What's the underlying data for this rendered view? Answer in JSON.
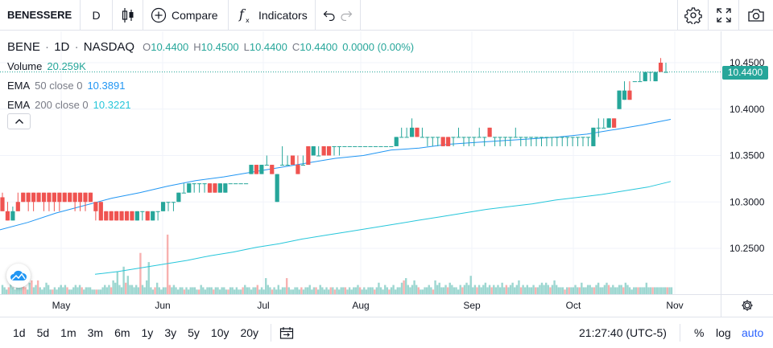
{
  "toolbar": {
    "symbol": "BENESSERE",
    "interval": "D",
    "compare_label": "Compare",
    "indicators_label": "Indicators"
  },
  "legend": {
    "ticker": "BENE",
    "interval": "1D",
    "exchange": "NASDAQ",
    "sep": "·",
    "o_label": "O",
    "open": "10.4400",
    "h_label": "H",
    "high": "10.4500",
    "l_label": "L",
    "low": "10.4400",
    "c_label": "C",
    "close": "10.4400",
    "change": "0.0000 (0.00%)",
    "volume_label": "Volume",
    "volume": "20.259K",
    "ema50_label": "EMA",
    "ema50_params": "50 close 0",
    "ema50_value": "10.3891",
    "ema200_label": "EMA",
    "ema200_params": "200 close 0",
    "ema200_value": "10.3221"
  },
  "price_axis": {
    "ticks": [
      "10.4500",
      "10.4000",
      "10.3500",
      "10.3000",
      "10.2500"
    ],
    "last_price": "10.4400"
  },
  "time_axis": {
    "months": [
      "May",
      "Jun",
      "Jul",
      "Aug",
      "Sep",
      "Oct",
      "Nov"
    ]
  },
  "bottom_bar": {
    "ranges": [
      "1d",
      "5d",
      "1m",
      "3m",
      "6m",
      "1y",
      "3y",
      "5y",
      "10y",
      "20y"
    ],
    "clock": "21:27:40 (UTC-5)",
    "percent": "%",
    "log": "log",
    "auto": "auto"
  },
  "colors": {
    "up": "#26a69a",
    "down": "#ef5350",
    "ema50": "#2196f3",
    "ema200": "#26c6da",
    "grid": "#f0f3fa",
    "accent": "#2962ff"
  },
  "chart_data": {
    "type": "candlestick",
    "price_range": [
      10.2,
      10.46
    ],
    "bars": [
      {
        "o": 10.305,
        "h": 10.31,
        "l": 10.29,
        "c": 10.29
      },
      {
        "o": 10.29,
        "h": 10.3,
        "l": 10.28,
        "c": 10.28
      },
      {
        "o": 10.28,
        "h": 10.295,
        "l": 10.28,
        "c": 10.29
      },
      {
        "o": 10.3,
        "h": 10.31,
        "l": 10.29,
        "c": 10.29
      },
      {
        "o": 10.31,
        "h": 10.31,
        "l": 10.3,
        "c": 10.3
      },
      {
        "o": 10.31,
        "h": 10.31,
        "l": 10.29,
        "c": 10.3
      },
      {
        "o": 10.31,
        "h": 10.31,
        "l": 10.29,
        "c": 10.3
      },
      {
        "o": 10.31,
        "h": 10.31,
        "l": 10.3,
        "c": 10.3
      },
      {
        "o": 10.31,
        "h": 10.31,
        "l": 10.29,
        "c": 10.3
      },
      {
        "o": 10.31,
        "h": 10.31,
        "l": 10.29,
        "c": 10.3
      },
      {
        "o": 10.31,
        "h": 10.31,
        "l": 10.29,
        "c": 10.3
      },
      {
        "o": 10.31,
        "h": 10.31,
        "l": 10.29,
        "c": 10.3
      },
      {
        "o": 10.31,
        "h": 10.31,
        "l": 10.3,
        "c": 10.3
      },
      {
        "o": 10.31,
        "h": 10.31,
        "l": 10.3,
        "c": 10.3
      },
      {
        "o": 10.31,
        "h": 10.31,
        "l": 10.29,
        "c": 10.3
      },
      {
        "o": 10.31,
        "h": 10.31,
        "l": 10.29,
        "c": 10.3
      },
      {
        "o": 10.31,
        "h": 10.31,
        "l": 10.29,
        "c": 10.3
      },
      {
        "o": 10.31,
        "h": 10.31,
        "l": 10.3,
        "c": 10.3
      },
      {
        "o": 10.3,
        "h": 10.3,
        "l": 10.28,
        "c": 10.29
      },
      {
        "o": 10.3,
        "h": 10.3,
        "l": 10.28,
        "c": 10.28
      },
      {
        "o": 10.29,
        "h": 10.29,
        "l": 10.28,
        "c": 10.28
      },
      {
        "o": 10.29,
        "h": 10.29,
        "l": 10.28,
        "c": 10.28
      },
      {
        "o": 10.29,
        "h": 10.29,
        "l": 10.28,
        "c": 10.28
      },
      {
        "o": 10.29,
        "h": 10.29,
        "l": 10.28,
        "c": 10.28
      },
      {
        "o": 10.29,
        "h": 10.29,
        "l": 10.28,
        "c": 10.28
      },
      {
        "o": 10.29,
        "h": 10.29,
        "l": 10.28,
        "c": 10.28
      },
      {
        "o": 10.28,
        "h": 10.29,
        "l": 10.28,
        "c": 10.29
      },
      {
        "o": 10.29,
        "h": 10.29,
        "l": 10.28,
        "c": 10.29
      },
      {
        "o": 10.29,
        "h": 10.29,
        "l": 10.28,
        "c": 10.28
      },
      {
        "o": 10.28,
        "h": 10.29,
        "l": 10.28,
        "c": 10.29
      },
      {
        "o": 10.29,
        "h": 10.29,
        "l": 10.28,
        "c": 10.29
      },
      {
        "o": 10.29,
        "h": 10.3,
        "l": 10.29,
        "c": 10.3
      },
      {
        "o": 10.3,
        "h": 10.3,
        "l": 10.29,
        "c": 10.3
      },
      {
        "o": 10.3,
        "h": 10.3,
        "l": 10.29,
        "c": 10.3
      },
      {
        "o": 10.3,
        "h": 10.31,
        "l": 10.3,
        "c": 10.31
      },
      {
        "o": 10.31,
        "h": 10.32,
        "l": 10.31,
        "c": 10.31
      },
      {
        "o": 10.31,
        "h": 10.32,
        "l": 10.31,
        "c": 10.32
      },
      {
        "o": 10.32,
        "h": 10.32,
        "l": 10.31,
        "c": 10.32
      },
      {
        "o": 10.32,
        "h": 10.32,
        "l": 10.31,
        "c": 10.32
      },
      {
        "o": 10.32,
        "h": 10.32,
        "l": 10.31,
        "c": 10.32
      },
      {
        "o": 10.32,
        "h": 10.32,
        "l": 10.31,
        "c": 10.31
      },
      {
        "o": 10.32,
        "h": 10.32,
        "l": 10.31,
        "c": 10.31
      },
      {
        "o": 10.31,
        "h": 10.32,
        "l": 10.31,
        "c": 10.32
      },
      {
        "o": 10.31,
        "h": 10.32,
        "l": 10.31,
        "c": 10.32
      },
      {
        "o": 10.32,
        "h": 10.32,
        "l": 10.32,
        "c": 10.32
      },
      {
        "o": 10.32,
        "h": 10.32,
        "l": 10.32,
        "c": 10.32
      },
      {
        "o": 10.32,
        "h": 10.32,
        "l": 10.32,
        "c": 10.32
      },
      {
        "o": 10.32,
        "h": 10.32,
        "l": 10.32,
        "c": 10.32
      },
      {
        "o": 10.33,
        "h": 10.34,
        "l": 10.33,
        "c": 10.34
      },
      {
        "o": 10.34,
        "h": 10.34,
        "l": 10.33,
        "c": 10.33
      },
      {
        "o": 10.33,
        "h": 10.34,
        "l": 10.33,
        "c": 10.34
      },
      {
        "o": 10.34,
        "h": 10.35,
        "l": 10.34,
        "c": 10.34
      },
      {
        "o": 10.34,
        "h": 10.34,
        "l": 10.33,
        "c": 10.33
      },
      {
        "o": 10.3,
        "h": 10.33,
        "l": 10.3,
        "c": 10.33
      },
      {
        "o": 10.34,
        "h": 10.36,
        "l": 10.34,
        "c": 10.34
      },
      {
        "o": 10.34,
        "h": 10.35,
        "l": 10.34,
        "c": 10.34
      },
      {
        "o": 10.35,
        "h": 10.35,
        "l": 10.34,
        "c": 10.34
      },
      {
        "o": 10.34,
        "h": 10.35,
        "l": 10.33,
        "c": 10.33
      },
      {
        "o": 10.34,
        "h": 10.35,
        "l": 10.34,
        "c": 10.34
      },
      {
        "o": 10.36,
        "h": 10.36,
        "l": 10.34,
        "c": 10.34
      },
      {
        "o": 10.35,
        "h": 10.36,
        "l": 10.35,
        "c": 10.36
      },
      {
        "o": 10.35,
        "h": 10.36,
        "l": 10.35,
        "c": 10.35
      },
      {
        "o": 10.36,
        "h": 10.36,
        "l": 10.35,
        "c": 10.35
      },
      {
        "o": 10.36,
        "h": 10.36,
        "l": 10.35,
        "c": 10.35
      },
      {
        "o": 10.36,
        "h": 10.36,
        "l": 10.35,
        "c": 10.36
      },
      {
        "o": 10.36,
        "h": 10.36,
        "l": 10.35,
        "c": 10.36
      },
      {
        "o": 10.36,
        "h": 10.36,
        "l": 10.36,
        "c": 10.36
      },
      {
        "o": 10.36,
        "h": 10.36,
        "l": 10.36,
        "c": 10.36
      },
      {
        "o": 10.36,
        "h": 10.36,
        "l": 10.36,
        "c": 10.36
      },
      {
        "o": 10.36,
        "h": 10.36,
        "l": 10.36,
        "c": 10.36
      },
      {
        "o": 10.36,
        "h": 10.36,
        "l": 10.36,
        "c": 10.36
      },
      {
        "o": 10.36,
        "h": 10.36,
        "l": 10.36,
        "c": 10.36
      },
      {
        "o": 10.36,
        "h": 10.36,
        "l": 10.36,
        "c": 10.36
      },
      {
        "o": 10.36,
        "h": 10.36,
        "l": 10.36,
        "c": 10.36
      },
      {
        "o": 10.36,
        "h": 10.36,
        "l": 10.36,
        "c": 10.36
      },
      {
        "o": 10.36,
        "h": 10.36,
        "l": 10.36,
        "c": 10.36
      },
      {
        "o": 10.36,
        "h": 10.37,
        "l": 10.36,
        "c": 10.37
      },
      {
        "o": 10.37,
        "h": 10.38,
        "l": 10.37,
        "c": 10.37
      },
      {
        "o": 10.37,
        "h": 10.38,
        "l": 10.37,
        "c": 10.37
      },
      {
        "o": 10.37,
        "h": 10.39,
        "l": 10.37,
        "c": 10.38
      },
      {
        "o": 10.38,
        "h": 10.38,
        "l": 10.37,
        "c": 10.37
      },
      {
        "o": 10.37,
        "h": 10.38,
        "l": 10.37,
        "c": 10.37
      },
      {
        "o": 10.37,
        "h": 10.37,
        "l": 10.36,
        "c": 10.37
      },
      {
        "o": 10.37,
        "h": 10.37,
        "l": 10.36,
        "c": 10.37
      },
      {
        "o": 10.37,
        "h": 10.37,
        "l": 10.36,
        "c": 10.37
      },
      {
        "o": 10.37,
        "h": 10.37,
        "l": 10.36,
        "c": 10.36
      },
      {
        "o": 10.37,
        "h": 10.37,
        "l": 10.36,
        "c": 10.36
      },
      {
        "o": 10.37,
        "h": 10.37,
        "l": 10.36,
        "c": 10.37
      },
      {
        "o": 10.37,
        "h": 10.38,
        "l": 10.37,
        "c": 10.37
      },
      {
        "o": 10.37,
        "h": 10.37,
        "l": 10.36,
        "c": 10.37
      },
      {
        "o": 10.37,
        "h": 10.37,
        "l": 10.36,
        "c": 10.37
      },
      {
        "o": 10.37,
        "h": 10.37,
        "l": 10.36,
        "c": 10.37
      },
      {
        "o": 10.37,
        "h": 10.38,
        "l": 10.37,
        "c": 10.37
      },
      {
        "o": 10.37,
        "h": 10.37,
        "l": 10.36,
        "c": 10.37
      },
      {
        "o": 10.38,
        "h": 10.38,
        "l": 10.37,
        "c": 10.37
      },
      {
        "o": 10.37,
        "h": 10.37,
        "l": 10.36,
        "c": 10.37
      },
      {
        "o": 10.37,
        "h": 10.37,
        "l": 10.36,
        "c": 10.37
      },
      {
        "o": 10.37,
        "h": 10.37,
        "l": 10.36,
        "c": 10.37
      },
      {
        "o": 10.37,
        "h": 10.37,
        "l": 10.36,
        "c": 10.37
      },
      {
        "o": 10.37,
        "h": 10.38,
        "l": 10.37,
        "c": 10.37
      },
      {
        "o": 10.37,
        "h": 10.37,
        "l": 10.36,
        "c": 10.37
      },
      {
        "o": 10.37,
        "h": 10.37,
        "l": 10.36,
        "c": 10.37
      },
      {
        "o": 10.37,
        "h": 10.37,
        "l": 10.36,
        "c": 10.37
      },
      {
        "o": 10.37,
        "h": 10.37,
        "l": 10.36,
        "c": 10.37
      },
      {
        "o": 10.37,
        "h": 10.37,
        "l": 10.36,
        "c": 10.37
      },
      {
        "o": 10.37,
        "h": 10.37,
        "l": 10.36,
        "c": 10.37
      },
      {
        "o": 10.37,
        "h": 10.37,
        "l": 10.36,
        "c": 10.37
      },
      {
        "o": 10.37,
        "h": 10.37,
        "l": 10.36,
        "c": 10.37
      },
      {
        "o": 10.37,
        "h": 10.37,
        "l": 10.36,
        "c": 10.37
      },
      {
        "o": 10.37,
        "h": 10.37,
        "l": 10.36,
        "c": 10.37
      },
      {
        "o": 10.37,
        "h": 10.37,
        "l": 10.36,
        "c": 10.37
      },
      {
        "o": 10.37,
        "h": 10.37,
        "l": 10.36,
        "c": 10.37
      },
      {
        "o": 10.37,
        "h": 10.37,
        "l": 10.36,
        "c": 10.37
      },
      {
        "o": 10.37,
        "h": 10.37,
        "l": 10.36,
        "c": 10.37
      },
      {
        "o": 10.36,
        "h": 10.38,
        "l": 10.36,
        "c": 10.38
      },
      {
        "o": 10.38,
        "h": 10.39,
        "l": 10.37,
        "c": 10.38
      },
      {
        "o": 10.38,
        "h": 10.39,
        "l": 10.38,
        "c": 10.38
      },
      {
        "o": 10.38,
        "h": 10.39,
        "l": 10.38,
        "c": 10.39
      },
      {
        "o": 10.39,
        "h": 10.39,
        "l": 10.38,
        "c": 10.38
      },
      {
        "o": 10.4,
        "h": 10.42,
        "l": 10.4,
        "c": 10.42
      },
      {
        "o": 10.41,
        "h": 10.43,
        "l": 10.41,
        "c": 10.42
      },
      {
        "o": 10.42,
        "h": 10.43,
        "l": 10.41,
        "c": 10.41
      },
      {
        "o": 10.43,
        "h": 10.43,
        "l": 10.43,
        "c": 10.43
      },
      {
        "o": 10.43,
        "h": 10.44,
        "l": 10.43,
        "c": 10.43
      },
      {
        "o": 10.43,
        "h": 10.44,
        "l": 10.43,
        "c": 10.44
      },
      {
        "o": 10.44,
        "h": 10.44,
        "l": 10.43,
        "c": 10.44
      },
      {
        "o": 10.43,
        "h": 10.44,
        "l": 10.43,
        "c": 10.44
      },
      {
        "o": 10.45,
        "h": 10.455,
        "l": 10.44,
        "c": 10.44
      },
      {
        "o": 10.44,
        "h": 10.45,
        "l": 10.44,
        "c": 10.44
      }
    ],
    "volumes": [
      4,
      3,
      2,
      3,
      5,
      3,
      2,
      3,
      4,
      6,
      8,
      3,
      2,
      5,
      6,
      3,
      4,
      6,
      3,
      2,
      3,
      5,
      4,
      2,
      2,
      3,
      2,
      3,
      4,
      3,
      4,
      3,
      2,
      2,
      3,
      4,
      3,
      4,
      3,
      2,
      3,
      3,
      3,
      2,
      2,
      2,
      2,
      2,
      3,
      4,
      3,
      4,
      3,
      6,
      5,
      10,
      4,
      3,
      12,
      5,
      8,
      4,
      4,
      3,
      4,
      3,
      18,
      4,
      3,
      6,
      14,
      3,
      2,
      3,
      5,
      3,
      2,
      3,
      3,
      26,
      4,
      3,
      4,
      3,
      2,
      3,
      3,
      2,
      3,
      2,
      3,
      3,
      3,
      2,
      2,
      4,
      3,
      2,
      3,
      3,
      3,
      2,
      3,
      3,
      2,
      3,
      3,
      2,
      2,
      3,
      3,
      2,
      3,
      2,
      2,
      3,
      4,
      3,
      3,
      2,
      3,
      3,
      4,
      2,
      3,
      2,
      7,
      4,
      3,
      2,
      3,
      2,
      4,
      2,
      3,
      3,
      7,
      3,
      2,
      2,
      3,
      3,
      2,
      3,
      2,
      3,
      3,
      4,
      2,
      3,
      3,
      2,
      4,
      3,
      2,
      3,
      2,
      3,
      3,
      2,
      3,
      2,
      3,
      3,
      3,
      2,
      3,
      2,
      3,
      3,
      4,
      3,
      2,
      3,
      2,
      3,
      3,
      3,
      2,
      3,
      5,
      3,
      2,
      4,
      3,
      2,
      3,
      4,
      2,
      3,
      3,
      5,
      6,
      7,
      4,
      3,
      4,
      6,
      4,
      3,
      2,
      2,
      3,
      3,
      4,
      3,
      2,
      6,
      4,
      5,
      3,
      3,
      4,
      3,
      5,
      4,
      3,
      3,
      2,
      4,
      3,
      4,
      5,
      4,
      8,
      3,
      4,
      3,
      4,
      3,
      4,
      5,
      3,
      4,
      3,
      4,
      3,
      4,
      3,
      5,
      3,
      4,
      3,
      4,
      5,
      3,
      4,
      6,
      3,
      4,
      3,
      4,
      3,
      3,
      4,
      3,
      3,
      4,
      5,
      4,
      5,
      4,
      3,
      4,
      6,
      4,
      3,
      3,
      3,
      2,
      3,
      3,
      3,
      3,
      4,
      3,
      3,
      5,
      3,
      3,
      4,
      4,
      3,
      3,
      4,
      5,
      3,
      3,
      4,
      5,
      4,
      3,
      4,
      3,
      3,
      4,
      4,
      3,
      5,
      4,
      3,
      2,
      3,
      3,
      3,
      3,
      3,
      3,
      5,
      3,
      3,
      3,
      3,
      3,
      3,
      3,
      3,
      3,
      3,
      3,
      3
    ],
    "ema50": [
      10.27,
      10.278,
      10.288,
      10.296,
      10.304,
      10.31,
      10.317,
      10.323,
      10.327,
      10.332,
      10.337,
      10.342,
      10.347,
      10.35,
      10.356,
      10.358,
      10.362,
      10.364,
      10.366,
      10.368,
      10.37,
      10.373,
      10.378,
      10.383,
      10.389
    ],
    "ema200": [
      10.222,
      10.225,
      10.229,
      10.233,
      10.237,
      10.242,
      10.246,
      10.251,
      10.255,
      10.26,
      10.264,
      10.268,
      10.272,
      10.276,
      10.28,
      10.284,
      10.288,
      10.292,
      10.295,
      10.298,
      10.302,
      10.305,
      10.308,
      10.312,
      10.316,
      10.322
    ]
  }
}
